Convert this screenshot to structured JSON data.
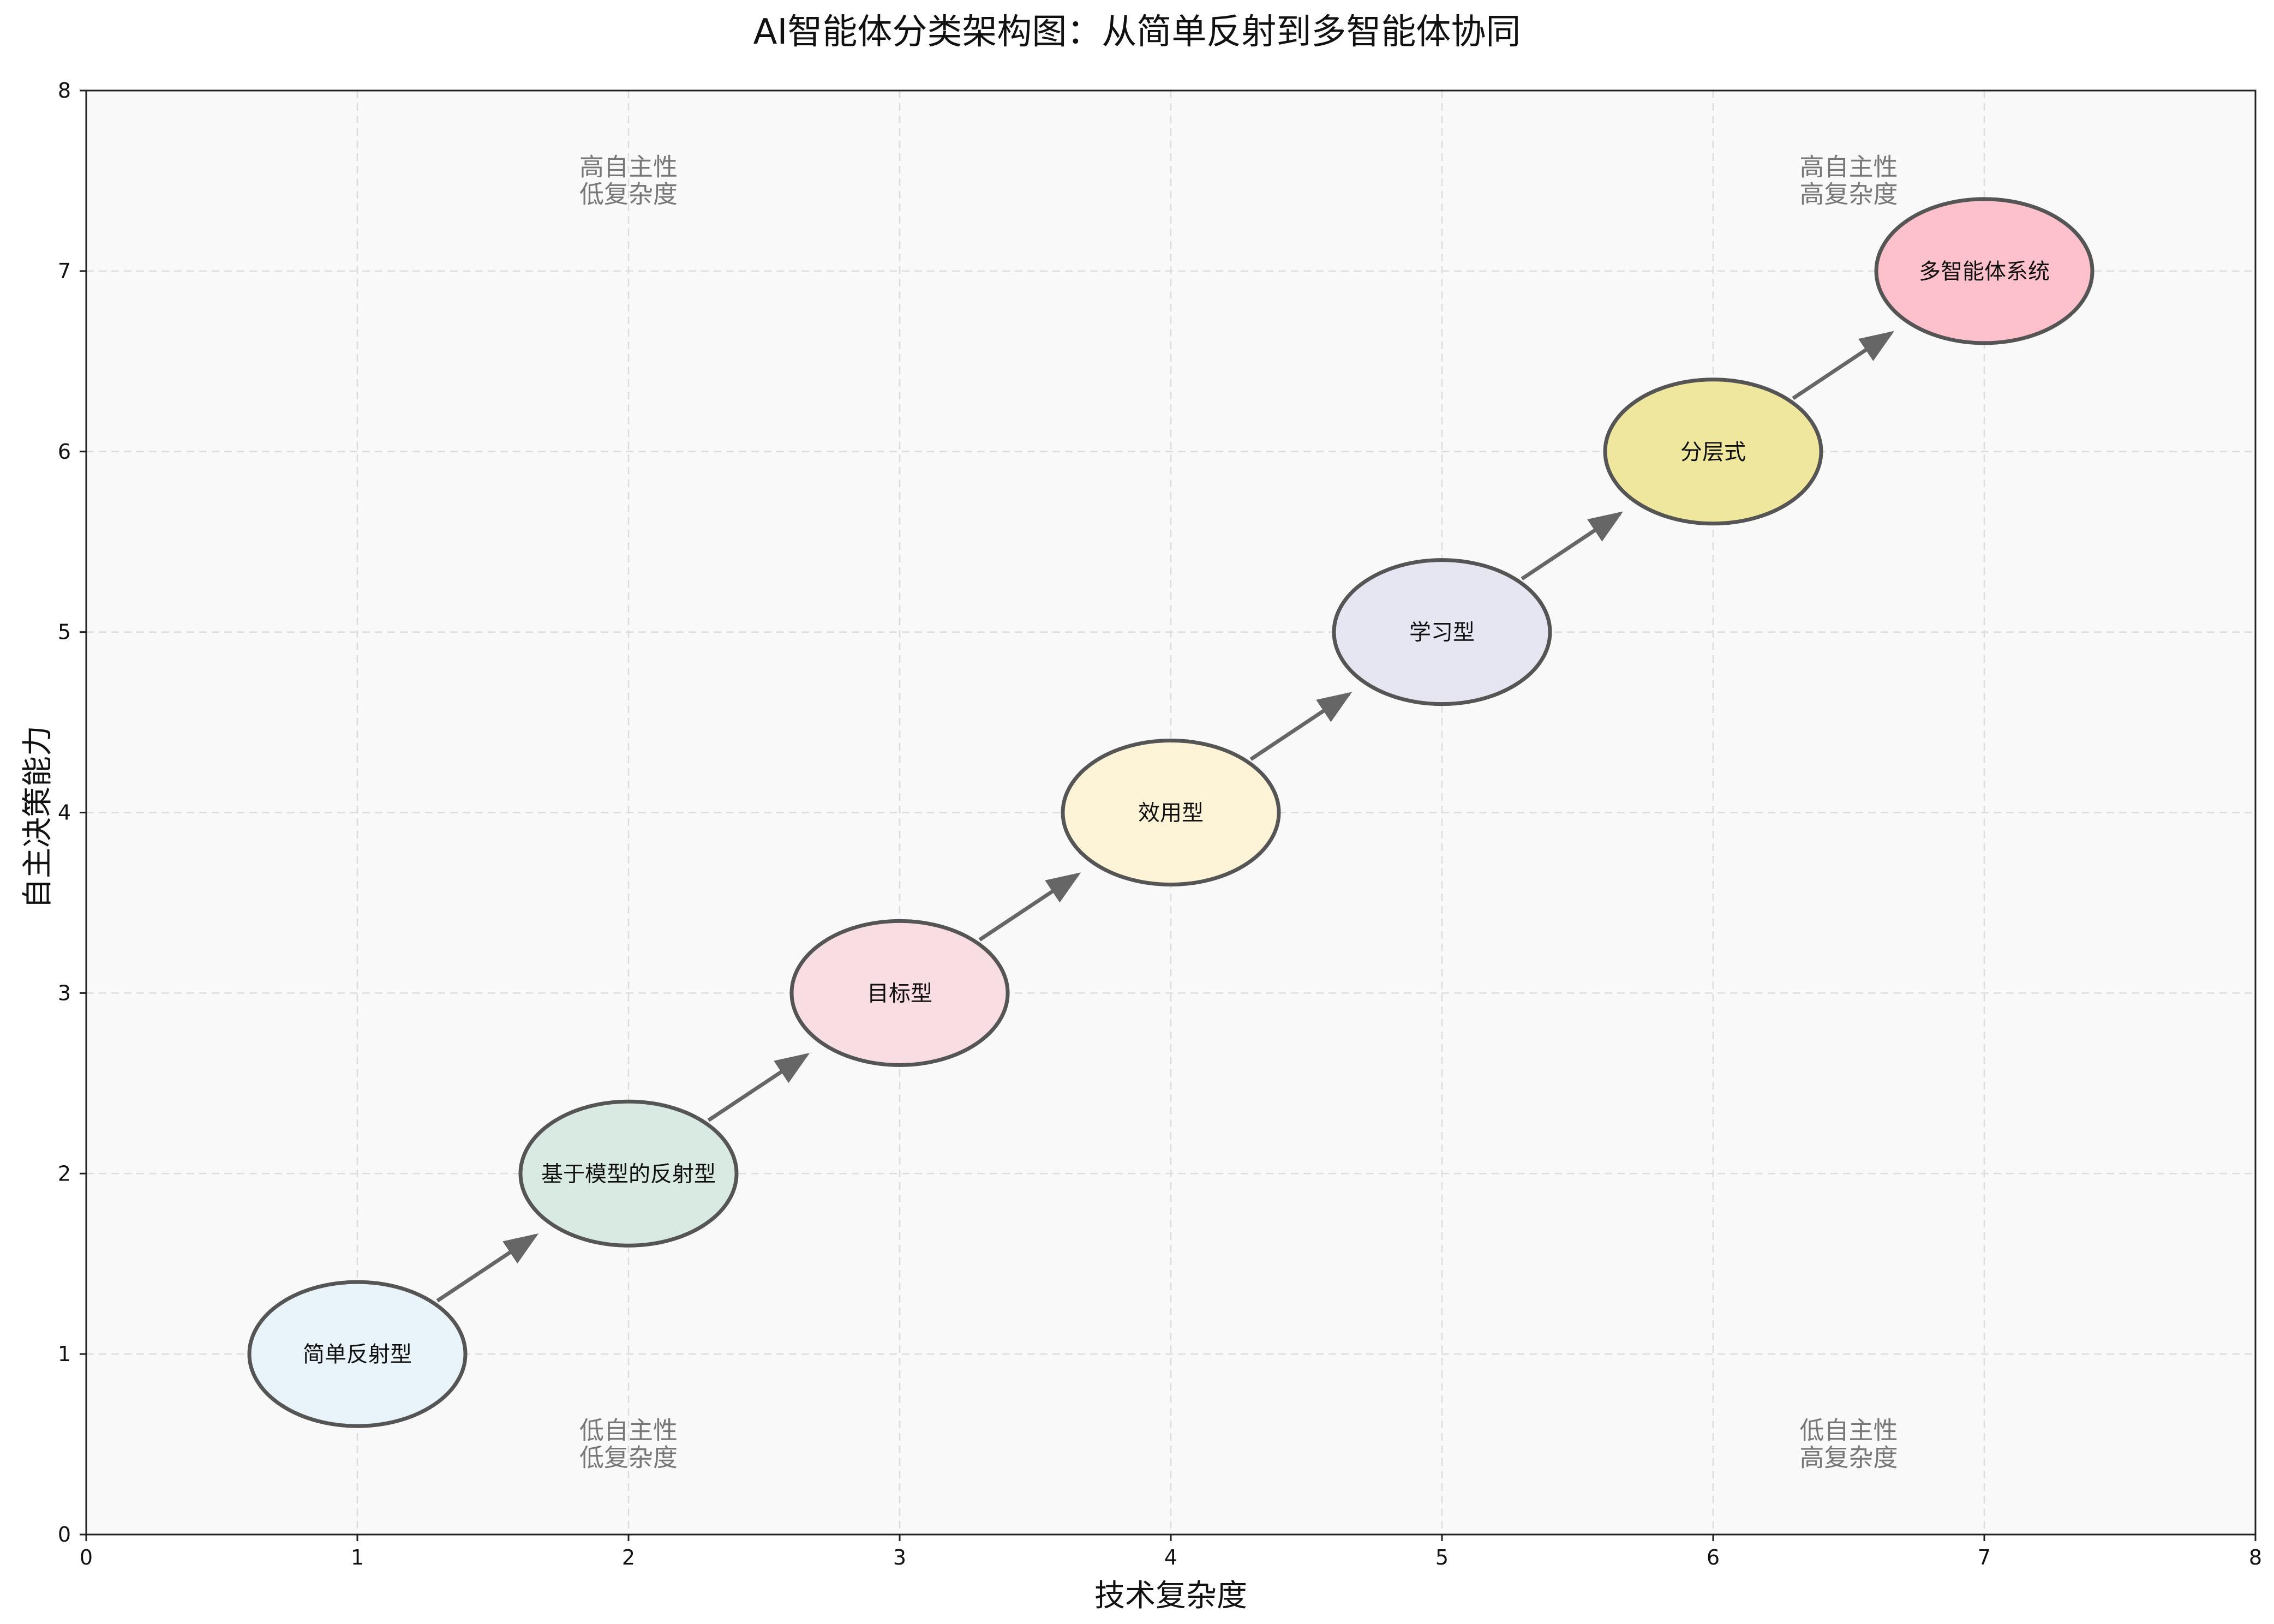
{
  "chart_data": {
    "type": "scatter",
    "title": "AI智能体分类架构图：从简单反射到多智能体协同",
    "xlabel": "技术复杂度",
    "ylabel": "自主决策能力",
    "xlim": [
      0,
      8
    ],
    "ylim": [
      0,
      8
    ],
    "xticks": [
      0,
      1,
      2,
      3,
      4,
      5,
      6,
      7,
      8
    ],
    "yticks": [
      0,
      1,
      2,
      3,
      4,
      5,
      6,
      7,
      8
    ],
    "grid": true,
    "points": [
      {
        "label": "简单反射型",
        "x": 1,
        "y": 1,
        "color": "#e8f4fa"
      },
      {
        "label": "基于模型的反射型",
        "x": 2,
        "y": 2,
        "color": "#d8eae2"
      },
      {
        "label": "目标型",
        "x": 3,
        "y": 3,
        "color": "#f8dde2"
      },
      {
        "label": "效用型",
        "x": 4,
        "y": 4,
        "color": "#fdf4d8"
      },
      {
        "label": "学习型",
        "x": 5,
        "y": 5,
        "color": "#e6e6f2"
      },
      {
        "label": "分层式",
        "x": 6,
        "y": 6,
        "color": "#f0e79e"
      },
      {
        "label": "多智能体系统",
        "x": 7,
        "y": 7,
        "color": "#fdc1cc"
      }
    ],
    "arrows": "sequential",
    "annotations": [
      {
        "lines": [
          "高自主性",
          "低复杂度"
        ],
        "x": 2,
        "y": 7.5
      },
      {
        "lines": [
          "高自主性",
          "高复杂度"
        ],
        "x": 6.5,
        "y": 7.5
      },
      {
        "lines": [
          "低自主性",
          "低复杂度"
        ],
        "x": 2,
        "y": 0.5
      },
      {
        "lines": [
          "低自主性",
          "高复杂度"
        ],
        "x": 6.5,
        "y": 0.5
      }
    ],
    "colors": {
      "plot_background": "#f9f9f9",
      "grid": "#dddddd",
      "node_edge": "#555555",
      "arrow": "#666666",
      "annotation_text": "#777777"
    }
  }
}
